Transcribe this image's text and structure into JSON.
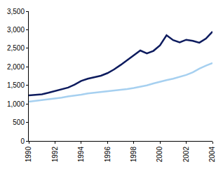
{
  "chart_data": {
    "type": "line",
    "x": [
      1990,
      1990.5,
      1991,
      1991.5,
      1992,
      1992.5,
      1993,
      1993.5,
      1994,
      1994.5,
      1995,
      1995.5,
      1996,
      1996.5,
      1997,
      1997.5,
      1998,
      1998.5,
      1999,
      1999.5,
      2000,
      2000.5,
      2001,
      2001.5,
      2002,
      2002.5,
      2003,
      2003.5,
      2004
    ],
    "series": [
      {
        "color": "#0d1b5e",
        "values": [
          1230,
          1240,
          1260,
          1300,
          1350,
          1390,
          1440,
          1520,
          1620,
          1680,
          1720,
          1760,
          1830,
          1930,
          2050,
          2180,
          2300,
          2440,
          2360,
          2430,
          2580,
          2850,
          2720,
          2660,
          2730,
          2700,
          2650,
          2760,
          2950
        ]
      },
      {
        "color": "#a6d0f0",
        "values": [
          1060,
          1080,
          1100,
          1130,
          1150,
          1170,
          1200,
          1220,
          1250,
          1280,
          1300,
          1320,
          1330,
          1350,
          1370,
          1400,
          1430,
          1460,
          1500,
          1550,
          1600,
          1640,
          1680,
          1730,
          1780,
          1850,
          1950,
          2030,
          2100
        ]
      }
    ],
    "xlim": [
      1990,
      2004
    ],
    "xticks": [
      1990,
      1992,
      1994,
      1996,
      1998,
      2000,
      2002,
      2004
    ],
    "ylim": [
      0,
      3500
    ],
    "yticks": [
      0,
      500,
      {
        "value": 1000,
        "label": "1,000"
      },
      {
        "value": 1500,
        "label": "1,500"
      },
      {
        "value": 2000,
        "label": "2,000"
      },
      {
        "value": 2500,
        "label": "2,500"
      },
      {
        "value": 3000,
        "label": "3,000"
      },
      {
        "value": 3500,
        "label": "3,500"
      }
    ],
    "grid": false
  }
}
